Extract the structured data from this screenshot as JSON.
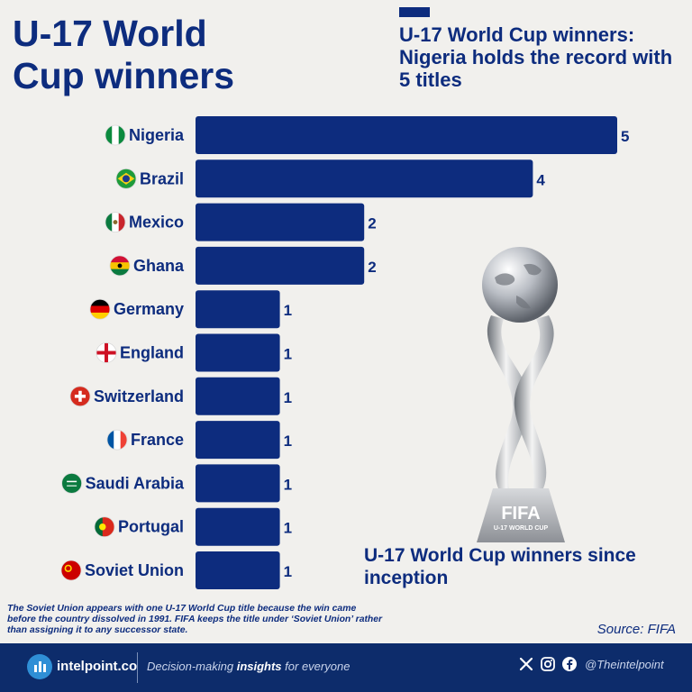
{
  "header": {
    "title_line1": "U-17 World",
    "title_line2": "Cup winners",
    "subtitle": "U-17 World Cup winners: Nigeria holds the record with 5 titles"
  },
  "chart_data": {
    "type": "bar",
    "orientation": "horizontal",
    "categories": [
      "Nigeria",
      "Brazil",
      "Mexico",
      "Ghana",
      "Germany",
      "England",
      "Switzerland",
      "France",
      "Saudi Arabia",
      "Portugal",
      "Soviet Union"
    ],
    "values": [
      5,
      4,
      2,
      2,
      1,
      1,
      1,
      1,
      1,
      1,
      1
    ],
    "value_labels": [
      "5",
      "4",
      "2",
      "2",
      "1",
      "1",
      "1",
      "1",
      "1",
      "1",
      "1"
    ],
    "bar_color": "#0d2c7e",
    "grid": false
  },
  "trophy": {
    "engraving_main": "FIFA",
    "engraving_sub": "U-17 WORLD CUP",
    "caption": "U-17 World Cup winners since inception"
  },
  "footnote": "The Soviet Union appears with one U-17 World Cup title because the win came before the country dissolved in 1991. FIFA keeps the title under ‘Soviet Union’ rather than assigning it to any successor state.",
  "source": "Source: FIFA",
  "footer": {
    "brand": "intelpoint.co",
    "tagline_pre": "Decision-making ",
    "tagline_bold": "insights",
    "tagline_post": " for everyone",
    "handle": "@Theintelpoint",
    "icons": [
      "x-icon",
      "instagram-icon",
      "facebook-icon"
    ],
    "background_color": "#0d2c6b"
  },
  "colors": {
    "primary": "#0d2c7e",
    "background": "#f1f0ed"
  }
}
